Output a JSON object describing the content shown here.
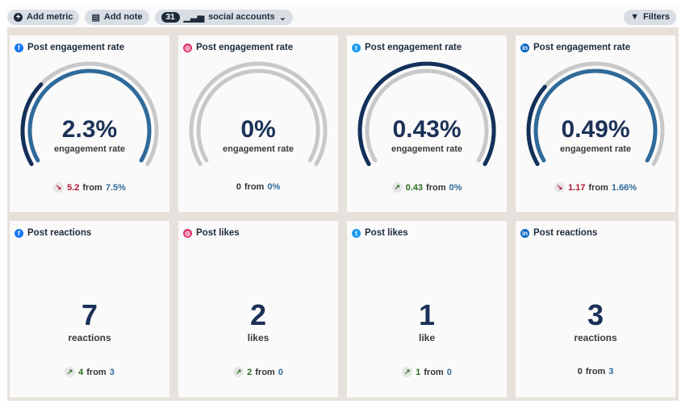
{
  "toolbar": {
    "add_metric": "Add metric",
    "add_note": "Add note",
    "accounts_count": "31",
    "accounts_label": "social accounts",
    "filters": "Filters"
  },
  "colors": {
    "current": "#12305a",
    "previous": "#2f6a9a",
    "track": "#c8c8c8",
    "decrease": "#b0172f",
    "increase": "#2a6b1f"
  },
  "gauges": [
    {
      "network": "facebook",
      "color": "#1877f2",
      "glyph": "f",
      "title": "Post engagement rate",
      "value": "2.3%",
      "label": "engagement rate",
      "current": 2.3,
      "previous": 7.5,
      "trend": "down",
      "change": "5.2",
      "from_word": "from",
      "from_value": "7.5%"
    },
    {
      "network": "instagram",
      "color": "#e1306c",
      "glyph": "◎",
      "title": "Post engagement rate",
      "value": "0%",
      "label": "engagement rate",
      "current": 0,
      "previous": 0,
      "trend": "none",
      "change": "0",
      "from_word": "from",
      "from_value": "0%"
    },
    {
      "network": "twitter",
      "color": "#1d9bf0",
      "glyph": "t",
      "title": "Post engagement rate",
      "value": "0.43%",
      "label": "engagement rate",
      "current": 0.43,
      "previous": 0,
      "trend": "up",
      "change": "0.43",
      "from_word": "from",
      "from_value": "0%"
    },
    {
      "network": "linkedin",
      "color": "#0a66c2",
      "glyph": "in",
      "title": "Post engagement rate",
      "value": "0.49%",
      "label": "engagement rate",
      "current": 0.49,
      "previous": 1.66,
      "trend": "down",
      "change": "1.17",
      "from_word": "from",
      "from_value": "1.66%"
    }
  ],
  "counts": [
    {
      "network": "facebook",
      "color": "#1877f2",
      "glyph": "f",
      "title": "Post reactions",
      "value": "7",
      "label": "reactions",
      "trend": "up",
      "change": "4",
      "from_word": "from",
      "from_value": "3"
    },
    {
      "network": "instagram",
      "color": "#e1306c",
      "glyph": "◎",
      "title": "Post likes",
      "value": "2",
      "label": "likes",
      "trend": "up",
      "change": "2",
      "from_word": "from",
      "from_value": "0"
    },
    {
      "network": "twitter",
      "color": "#1d9bf0",
      "glyph": "t",
      "title": "Post likes",
      "value": "1",
      "label": "like",
      "trend": "up",
      "change": "1",
      "from_word": "from",
      "from_value": "0"
    },
    {
      "network": "linkedin",
      "color": "#0a66c2",
      "glyph": "in",
      "title": "Post reactions",
      "value": "3",
      "label": "reactions",
      "trend": "none",
      "change": "0",
      "from_word": "from",
      "from_value": "3"
    }
  ]
}
